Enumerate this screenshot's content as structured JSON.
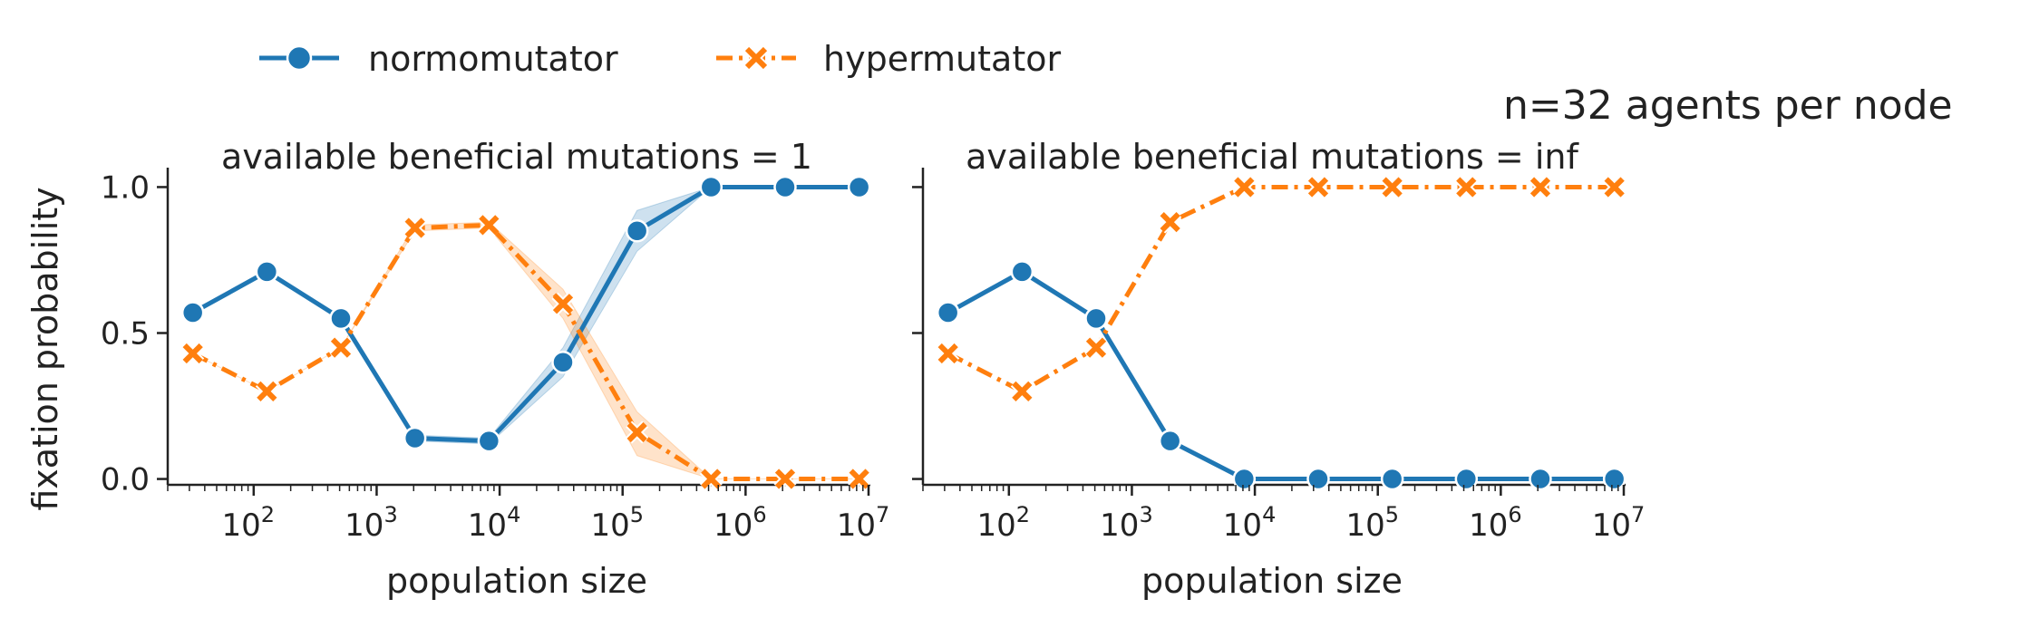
{
  "suptitle": "n=32 agents per node",
  "legend": {
    "items": [
      {
        "label": "normomutator",
        "color": "#1f77b4",
        "marker": "circle",
        "dash": "solid"
      },
      {
        "label": "hypermutator",
        "color": "#ff7f0e",
        "marker": "x",
        "dash": "dashdot"
      }
    ]
  },
  "chart_data": [
    {
      "type": "line",
      "title": "available beneficial mutations = 1",
      "xlabel": "population size",
      "ylabel": "fixation probability",
      "xscale": "log",
      "xlim": [
        20,
        10000000
      ],
      "ylim": [
        -0.02,
        1.02
      ],
      "yticks": [
        0.0,
        0.5,
        1.0
      ],
      "ytick_labels": [
        "0.0",
        "0.5",
        "1.0"
      ],
      "xticks": [
        100,
        1000,
        10000,
        100000,
        1000000,
        10000000
      ],
      "xtick_labels": [
        [
          "10",
          "2"
        ],
        [
          "10",
          "3"
        ],
        [
          "10",
          "4"
        ],
        [
          "10",
          "5"
        ],
        [
          "10",
          "6"
        ],
        [
          "10",
          "7"
        ]
      ],
      "x": [
        32,
        128,
        512,
        2048,
        8192,
        32768,
        131072,
        524288,
        2097152,
        8388608
      ],
      "series": [
        {
          "name": "normomutator",
          "color": "#1f77b4",
          "values": [
            0.57,
            0.71,
            0.55,
            0.14,
            0.13,
            0.4,
            0.85,
            1.0,
            1.0,
            1.0
          ],
          "ci_low": [
            0.57,
            0.71,
            0.55,
            0.13,
            0.12,
            0.35,
            0.78,
            1.0,
            1.0,
            1.0
          ],
          "ci_high": [
            0.57,
            0.71,
            0.55,
            0.15,
            0.14,
            0.45,
            0.92,
            1.0,
            1.0,
            1.0
          ]
        },
        {
          "name": "hypermutator",
          "color": "#ff7f0e",
          "values": [
            0.43,
            0.3,
            0.45,
            0.86,
            0.87,
            0.6,
            0.16,
            0.0,
            0.0,
            0.0
          ],
          "ci_low": [
            0.43,
            0.3,
            0.45,
            0.85,
            0.86,
            0.55,
            0.08,
            0.0,
            0.0,
            0.0
          ],
          "ci_high": [
            0.43,
            0.3,
            0.45,
            0.87,
            0.88,
            0.65,
            0.23,
            0.0,
            0.0,
            0.0
          ]
        }
      ]
    },
    {
      "type": "line",
      "title": "available beneficial mutations = inf",
      "xlabel": "population size",
      "ylabel": "",
      "xscale": "log",
      "xlim": [
        20,
        10000000
      ],
      "ylim": [
        -0.02,
        1.02
      ],
      "yticks": [
        0.0,
        0.5,
        1.0
      ],
      "ytick_labels": [
        "",
        "",
        ""
      ],
      "xticks": [
        100,
        1000,
        10000,
        100000,
        1000000,
        10000000
      ],
      "xtick_labels": [
        [
          "10",
          "2"
        ],
        [
          "10",
          "3"
        ],
        [
          "10",
          "4"
        ],
        [
          "10",
          "5"
        ],
        [
          "10",
          "6"
        ],
        [
          "10",
          "7"
        ]
      ],
      "x": [
        32,
        128,
        512,
        2048,
        8192,
        32768,
        131072,
        524288,
        2097152,
        8388608
      ],
      "series": [
        {
          "name": "normomutator",
          "color": "#1f77b4",
          "values": [
            0.57,
            0.71,
            0.55,
            0.13,
            0.0,
            0.0,
            0.0,
            0.0,
            0.0,
            0.0
          ]
        },
        {
          "name": "hypermutator",
          "color": "#ff7f0e",
          "values": [
            0.43,
            0.3,
            0.45,
            0.88,
            1.0,
            1.0,
            1.0,
            1.0,
            1.0,
            1.0
          ]
        }
      ]
    }
  ]
}
